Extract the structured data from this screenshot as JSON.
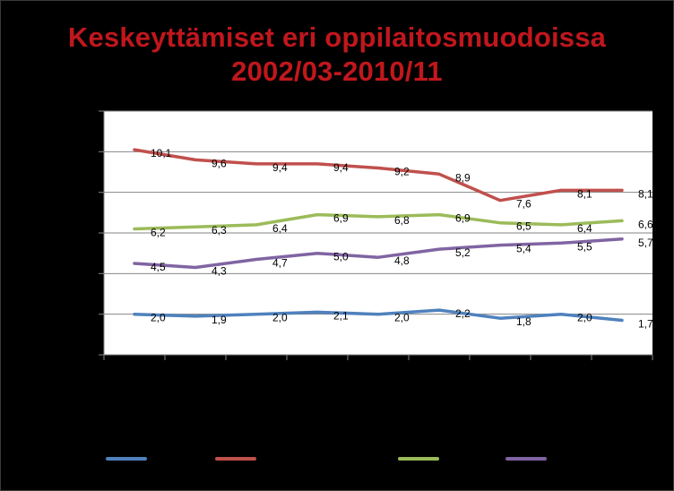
{
  "title": {
    "line1": "Keskeyttämiset eri oppilaitosmuodoissa",
    "line2": "2002/03-2010/11"
  },
  "chart_data": {
    "type": "line",
    "title": "Keskeyttämiset eri oppilaitosmuodoissa 2002/03-2010/11",
    "categories": [
      "",
      "",
      "",
      "",
      "",
      "",
      "",
      "",
      ""
    ],
    "ylim": [
      0,
      12
    ],
    "grid": true,
    "legend": "bottom",
    "series": [
      {
        "color": "#4f81bd",
        "values": [
          2.0,
          1.9,
          2.0,
          2.1,
          2.0,
          2.2,
          1.8,
          2.0,
          1.7
        ],
        "labels": [
          "2,0",
          "1,9",
          "2,0",
          "2,1",
          "2,0",
          "2,2",
          "1,8",
          "2,0",
          "1,7"
        ]
      },
      {
        "color": "#c0504d",
        "values": [
          10.1,
          9.6,
          9.4,
          9.4,
          9.2,
          8.9,
          7.6,
          8.1,
          8.1
        ],
        "labels": [
          "10,1",
          "9,6",
          "9,4",
          "9,4",
          "9,2",
          "8,9",
          "7,6",
          "8,1",
          "8,1"
        ]
      },
      {
        "color": "#9bbb59",
        "values": [
          6.2,
          6.3,
          6.4,
          6.9,
          6.8,
          6.9,
          6.5,
          6.4,
          6.6
        ],
        "labels": [
          "6,2",
          "6,3",
          "6,4",
          "6,9",
          "6,8",
          "6,9",
          "6,5",
          "6,4",
          "6,6"
        ]
      },
      {
        "color": "#8064a2",
        "values": [
          4.5,
          4.3,
          4.7,
          5.0,
          4.8,
          5.2,
          5.4,
          5.5,
          5.7
        ],
        "labels": [
          "4,5",
          "4,3",
          "4,7",
          "5,0",
          "4,8",
          "5,2",
          "5,4",
          "5,5",
          "5,7"
        ]
      }
    ]
  }
}
